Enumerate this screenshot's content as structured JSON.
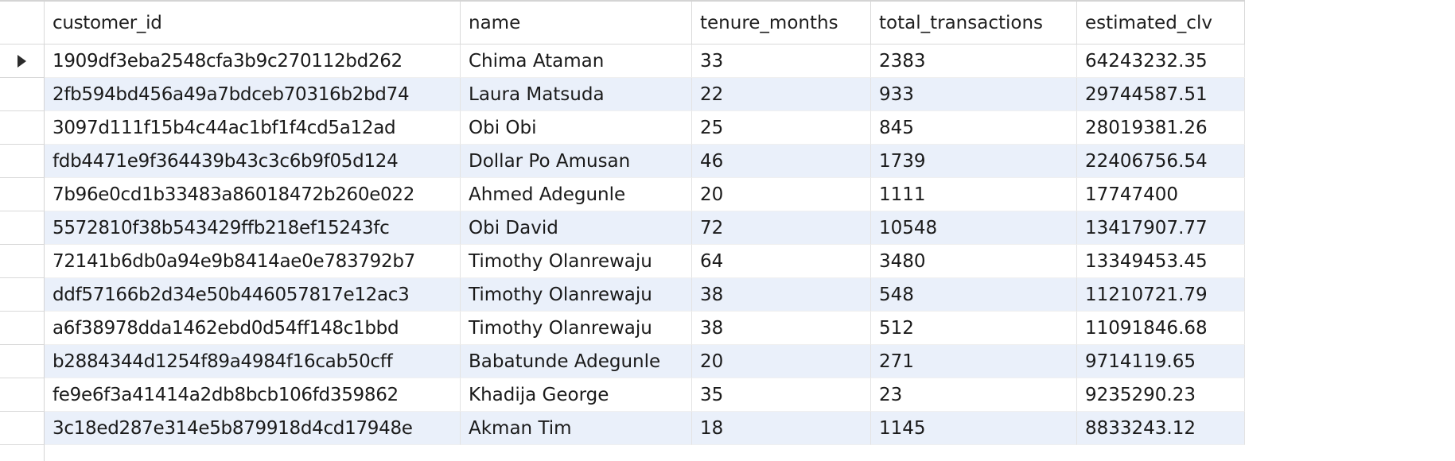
{
  "grid": {
    "columns": [
      "customer_id",
      "name",
      "tenure_months",
      "total_transactions",
      "estimated_clv"
    ],
    "rows": [
      [
        "1909df3eba2548cfa3b9c270112bd262",
        "Chima Ataman",
        "33",
        "2383",
        "64243232.35"
      ],
      [
        "2fb594bd456a49a7bdceb70316b2bd74",
        "Laura Matsuda",
        "22",
        "933",
        "29744587.51"
      ],
      [
        "3097d111f15b4c44ac1bf1f4cd5a12ad",
        "Obi Obi",
        "25",
        "845",
        "28019381.26"
      ],
      [
        "fdb4471e9f364439b43c3c6b9f05d124",
        "Dollar Po Amusan",
        "46",
        "1739",
        "22406756.54"
      ],
      [
        "7b96e0cd1b33483a86018472b260e022",
        "Ahmed Adegunle",
        "20",
        "1111",
        "17747400"
      ],
      [
        "5572810f38b543429ffb218ef15243fc",
        "Obi David",
        "72",
        "10548",
        "13417907.77"
      ],
      [
        "72141b6db0a94e9b8414ae0e783792b7",
        "Timothy Olanrewaju",
        "64",
        "3480",
        "13349453.45"
      ],
      [
        "ddf57166b2d34e50b446057817e12ac3",
        "Timothy Olanrewaju",
        "38",
        "548",
        "11210721.79"
      ],
      [
        "a6f38978dda1462ebd0d54ff148c1bbd",
        "Timothy Olanrewaju",
        "38",
        "512",
        "11091846.68"
      ],
      [
        "b2884344d1254f89a4984f16cab50cff",
        "Babatunde Adegunle",
        "20",
        "271",
        "9714119.65"
      ],
      [
        "fe9e6f3a41414a2db8bcb106fd359862",
        "Khadija George",
        "35",
        "23",
        "9235290.23"
      ],
      [
        "3c18ed287e314e5b879918d4cd17948e",
        "Akman Tim",
        "18",
        "1145",
        "8833243.12"
      ]
    ],
    "current_row_index": 0,
    "current_row_marker_icon": "triangle-right-icon",
    "colors": {
      "alt_row": "#eaf0fa",
      "grid_line": "#e3e3e3",
      "header_border": "#d9d9d9"
    }
  }
}
